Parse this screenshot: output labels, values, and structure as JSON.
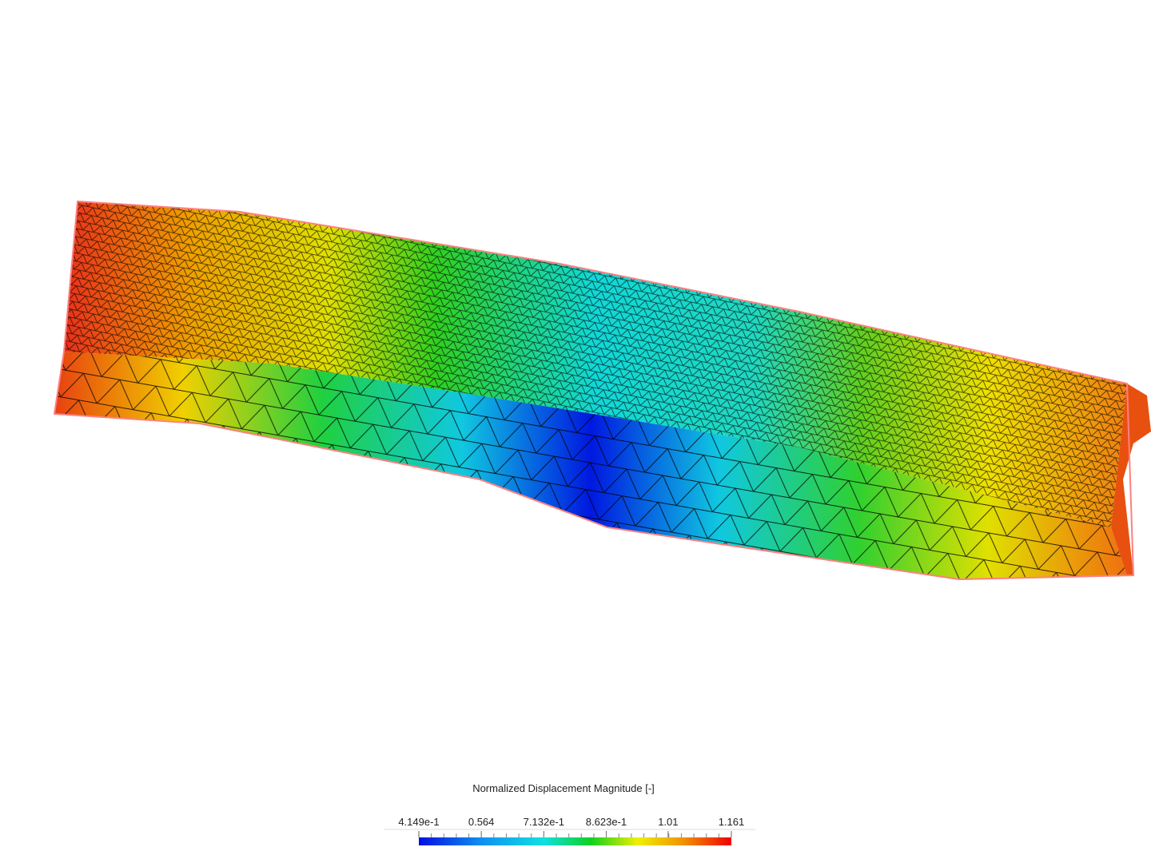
{
  "legend": {
    "title": "Normalized Displacement Magnitude [-]",
    "ticks": [
      {
        "value": 0.4149,
        "label": "4.149e-1"
      },
      {
        "value": 0.564,
        "label": "0.564"
      },
      {
        "value": 0.7132,
        "label": "7.132e-1"
      },
      {
        "value": 0.8623,
        "label": "8.623e-1"
      },
      {
        "value": 1.01,
        "label": "1.01"
      },
      {
        "value": 1.161,
        "label": "1.161"
      }
    ]
  }
}
